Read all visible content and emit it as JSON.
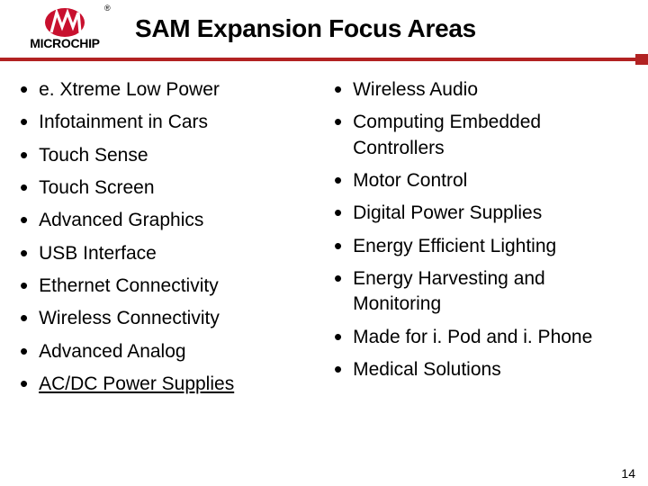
{
  "brand": {
    "name": "MICROCHIP",
    "logo_color": "#c8102e",
    "registered_mark": "®"
  },
  "title": "SAM Expansion Focus Areas",
  "divider_color": "#b22222",
  "background_color": "#ffffff",
  "text_color": "#000000",
  "title_fontsize": 28,
  "item_fontsize": 21,
  "left_items": [
    "e. Xtreme Low Power",
    "Infotainment in Cars",
    "Touch Sense",
    "Touch Screen",
    "Advanced Graphics",
    "USB Interface",
    "Ethernet Connectivity",
    "Wireless Connectivity",
    "Advanced Analog",
    "AC/DC Power Supplies"
  ],
  "right_items": [
    "Wireless Audio",
    "Computing Embedded Controllers",
    "Motor Control",
    "Digital Power Supplies",
    "Energy Efficient Lighting",
    "Energy Harvesting and Monitoring",
    "Made for i. Pod and i. Phone",
    "Medical Solutions"
  ],
  "left_last_underlined": true,
  "page_number": "14"
}
